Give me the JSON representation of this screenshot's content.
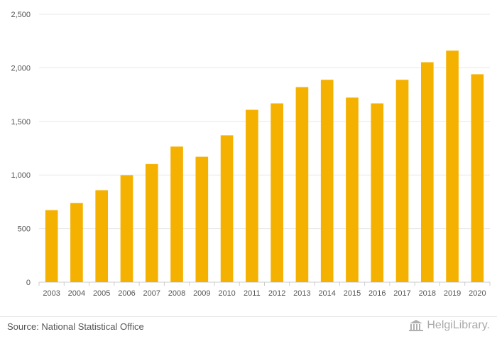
{
  "chart_data": {
    "type": "bar",
    "title": "",
    "xlabel": "",
    "ylabel": "",
    "categories": [
      "2003",
      "2004",
      "2005",
      "2006",
      "2007",
      "2008",
      "2009",
      "2010",
      "2011",
      "2012",
      "2013",
      "2014",
      "2015",
      "2016",
      "2017",
      "2018",
      "2019",
      "2020"
    ],
    "values": [
      672,
      738,
      858,
      998,
      1102,
      1265,
      1170,
      1370,
      1608,
      1668,
      1820,
      1888,
      1722,
      1668,
      1888,
      2052,
      2160,
      1940
    ],
    "ylim": [
      0,
      2500
    ],
    "yticks": [
      0,
      500,
      1000,
      1500,
      2000,
      2500
    ],
    "ytick_labels": [
      "0",
      "500",
      "1,000",
      "1,500",
      "2,000",
      "2,500"
    ],
    "grid": true,
    "bar_color": "#f5b100",
    "grid_color": "#e8e8e8"
  },
  "footer": {
    "source": "Source: National Statistical Office",
    "logo_text": "HelgiLibrary."
  }
}
